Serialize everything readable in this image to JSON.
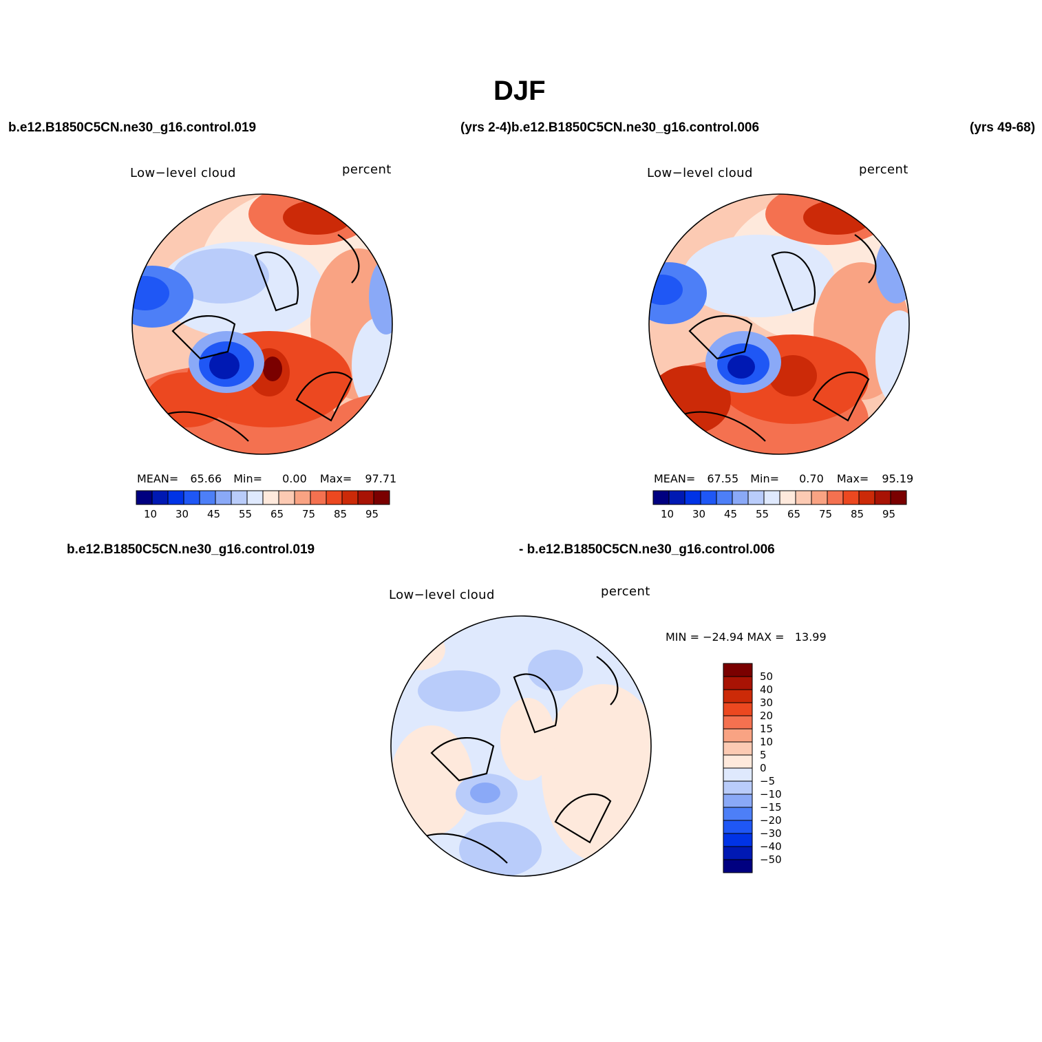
{
  "title": "DJF",
  "headers": {
    "top_left": "b.e12.B1850C5CN.ne30_g16.control.019",
    "top_middle": "(yrs 2-4)b.e12.B1850C5CN.ne30_g16.control.006",
    "top_right": "(yrs 49-68)",
    "bottom_left": "b.e12.B1850C5CN.ne30_g16.control.019",
    "bottom_right": "- b.e12.B1850C5CN.ne30_g16.control.006"
  },
  "panels": {
    "p1": {
      "variable": "Low−level cloud",
      "units": "percent",
      "stats": {
        "mean_label": "MEAN=",
        "mean": "65.66",
        "min_label": "Min=",
        "min": "0.00",
        "max_label": "Max=",
        "max": "97.71"
      }
    },
    "p2": {
      "variable": "Low−level cloud",
      "units": "percent",
      "stats": {
        "mean_label": "MEAN=",
        "mean": "67.55",
        "min_label": "Min=",
        "min": "0.70",
        "max_label": "Max=",
        "max": "95.19"
      }
    },
    "p3": {
      "variable": "Low−level cloud",
      "units": "percent",
      "minmax": "MIN = −24.94 MAX =   13.99"
    }
  },
  "colorbar_abs": {
    "colors": [
      "#000080",
      "#0019b3",
      "#0033e6",
      "#1f57f5",
      "#4d7ff7",
      "#8aa9f7",
      "#b9ccfa",
      "#dfe9fd",
      "#fee9dc",
      "#fccab3",
      "#f9a383",
      "#f47150",
      "#ec4820",
      "#cc2a08",
      "#a81304",
      "#7a0000"
    ],
    "ticks": [
      "10",
      "30",
      "45",
      "55",
      "65",
      "75",
      "85",
      "95"
    ]
  },
  "colorbar_diff": {
    "colors": [
      "#7a0000",
      "#a81304",
      "#cc2a08",
      "#ec4820",
      "#f47150",
      "#f9a383",
      "#fccab3",
      "#fee9dc",
      "#dfe9fd",
      "#b9ccfa",
      "#8aa9f7",
      "#4d7ff7",
      "#1f57f5",
      "#0033e6",
      "#0019b3",
      "#000080"
    ],
    "ticks": [
      "50",
      "40",
      "30",
      "20",
      "15",
      "10",
      "5",
      "0",
      "−5",
      "−10",
      "−15",
      "−20",
      "−30",
      "−40",
      "−50"
    ]
  }
}
